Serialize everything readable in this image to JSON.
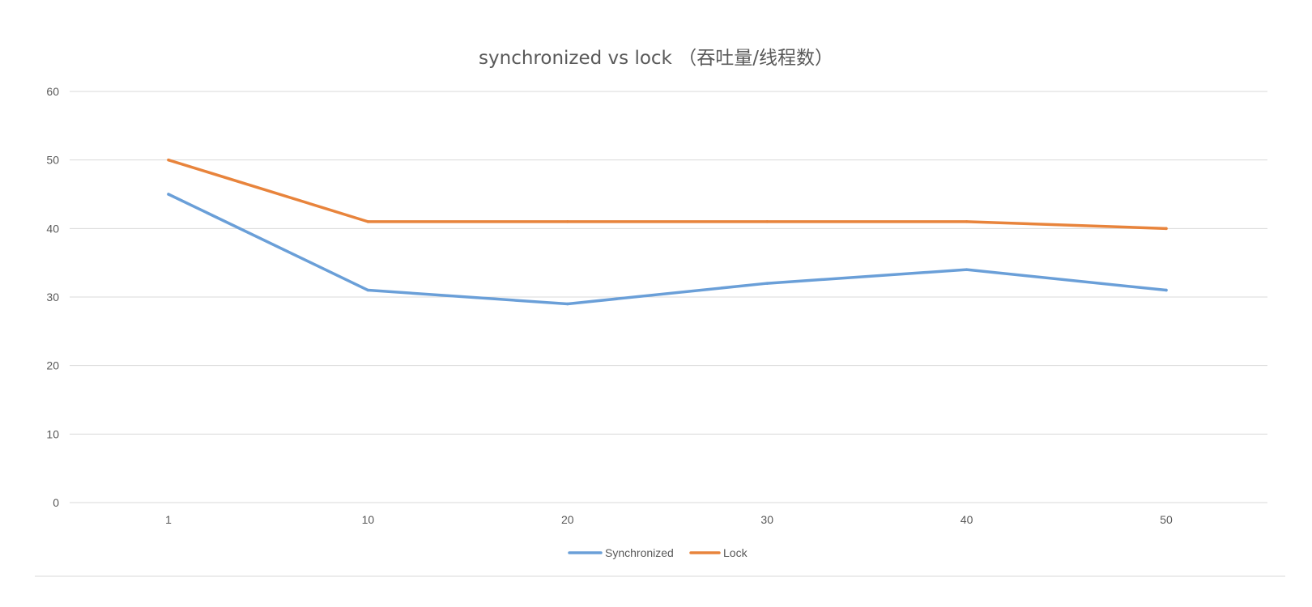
{
  "chart_data": {
    "type": "line",
    "title": "synchronized vs lock （吞吐量/线程数）",
    "xlabel": "",
    "ylabel": "",
    "categories": [
      "1",
      "10",
      "20",
      "30",
      "40",
      "50"
    ],
    "ylim": [
      0,
      60
    ],
    "yticks": [
      "0",
      "10",
      "20",
      "30",
      "40",
      "50",
      "60"
    ],
    "grid": true,
    "legend_position": "bottom",
    "series": [
      {
        "name": "Synchronized",
        "color": "#6a9fd8",
        "values": [
          45,
          31,
          29,
          32,
          34,
          31
        ]
      },
      {
        "name": "Lock",
        "color": "#e8843c",
        "values": [
          50,
          41,
          41,
          41,
          41,
          40
        ]
      }
    ]
  }
}
